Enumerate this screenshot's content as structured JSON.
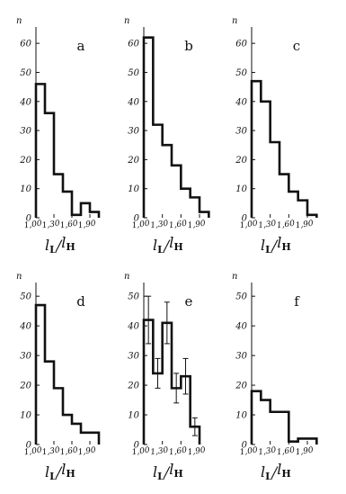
{
  "chart_data": [
    {
      "type": "bar",
      "panel_label": "a",
      "ylabel": "n",
      "xlabel": {
        "main": "l",
        "sub_top": "L",
        "sep": "/",
        "main2": "l",
        "sub_bottom": "H"
      },
      "bin_edges": [
        1.0,
        1.15,
        1.3,
        1.45,
        1.6,
        1.75,
        1.9,
        2.05
      ],
      "values": [
        46,
        36,
        15,
        9,
        1,
        5,
        2
      ],
      "yticks": [
        "0",
        "10",
        "20",
        "30",
        "40",
        "50",
        "60"
      ],
      "xticks": [
        "1,00",
        "1,30",
        "1,60",
        "1,90"
      ],
      "ylim": [
        0,
        65
      ]
    },
    {
      "type": "bar",
      "panel_label": "b",
      "ylabel": "n",
      "xlabel": {
        "main": "l",
        "sub_top": "L",
        "sep": "/",
        "main2": "l",
        "sub_bottom": "H"
      },
      "bin_edges": [
        1.0,
        1.15,
        1.3,
        1.45,
        1.6,
        1.75,
        1.9,
        2.05
      ],
      "values": [
        62,
        32,
        25,
        18,
        10,
        7,
        2
      ],
      "yticks": [
        "0",
        "10",
        "20",
        "30",
        "40",
        "50",
        "60"
      ],
      "xticks": [
        "1,00",
        "1,30",
        "1,60",
        "1,90"
      ],
      "ylim": [
        0,
        65
      ]
    },
    {
      "type": "bar",
      "panel_label": "c",
      "ylabel": "n",
      "xlabel": {
        "main": "l",
        "sub_top": "L",
        "sep": "/",
        "main2": "l",
        "sub_bottom": "H"
      },
      "bin_edges": [
        1.0,
        1.15,
        1.3,
        1.45,
        1.6,
        1.75,
        1.9,
        2.05
      ],
      "values": [
        47,
        40,
        26,
        15,
        9,
        6,
        1
      ],
      "yticks": [
        "0",
        "10",
        "20",
        "30",
        "40",
        "50",
        "60"
      ],
      "xticks": [
        "1,00",
        "1,30",
        "1,60",
        "1,90"
      ],
      "ylim": [
        0,
        65
      ]
    },
    {
      "type": "bar",
      "panel_label": "d",
      "ylabel": "n",
      "xlabel": {
        "main": "l",
        "sub_top": "L",
        "sep": "/",
        "main2": "l",
        "sub_bottom": "H"
      },
      "bin_edges": [
        1.0,
        1.15,
        1.3,
        1.45,
        1.6,
        1.75,
        1.9,
        2.05
      ],
      "values": [
        47,
        28,
        19,
        10,
        7,
        4,
        4
      ],
      "yticks": [
        "0",
        "10",
        "20",
        "30",
        "40",
        "50"
      ],
      "xticks": [
        "1,00",
        "1,30",
        "1,60",
        "1,90"
      ],
      "ylim": [
        0,
        54
      ]
    },
    {
      "type": "bar",
      "panel_label": "e",
      "ylabel": "n",
      "xlabel": {
        "main": "l",
        "sub_top": "L",
        "sep": "/",
        "main2": "l",
        "sub_bottom": "H"
      },
      "bin_edges": [
        1.0,
        1.15,
        1.3,
        1.45,
        1.6,
        1.75,
        1.9
      ],
      "values": [
        42,
        24,
        41,
        19,
        23,
        6
      ],
      "error_bars": [
        8,
        5,
        7,
        5,
        6,
        3
      ],
      "yticks": [
        "0",
        "10",
        "20",
        "30",
        "40",
        "50"
      ],
      "xticks": [
        "1,00",
        "1,30",
        "1,60",
        "1,90"
      ],
      "ylim": [
        0,
        54
      ]
    },
    {
      "type": "bar",
      "panel_label": "f",
      "ylabel": "n",
      "xlabel": {
        "main": "l",
        "sub_top": "L",
        "sep": "/",
        "main2": "l",
        "sub_bottom": "H"
      },
      "bin_edges": [
        1.0,
        1.15,
        1.3,
        1.45,
        1.6,
        1.75,
        1.9,
        2.05
      ],
      "values": [
        18,
        15,
        11,
        11,
        1,
        2,
        2
      ],
      "yticks": [
        "0",
        "10",
        "20",
        "30",
        "40",
        "50"
      ],
      "xticks": [
        "1,00",
        "1,30",
        "1,60",
        "1,90"
      ],
      "ylim": [
        0,
        54
      ]
    }
  ]
}
